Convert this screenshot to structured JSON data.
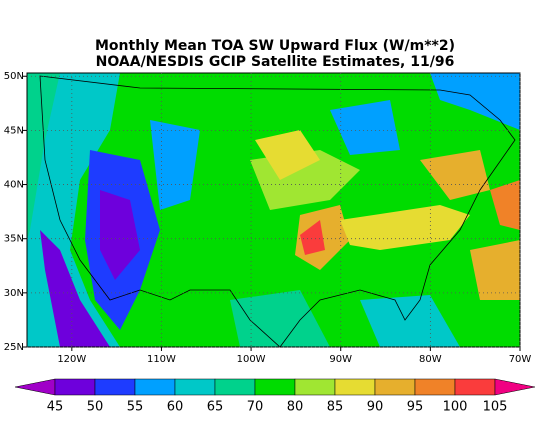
{
  "title": "Monthly Mean TOA SW Upward Flux (W/m**2)",
  "subtitle": "NOAA/NESDIS GCIP Satellite Estimates, 11/96",
  "map": {
    "lonlim": [
      -125,
      -70
    ],
    "latlim": [
      25,
      50.3
    ],
    "lonticks": [
      {
        "value": -120,
        "label": "120W"
      },
      {
        "value": -110,
        "label": "110W"
      },
      {
        "value": -100,
        "label": "100W"
      },
      {
        "value": -90,
        "label": "90W"
      },
      {
        "value": -80,
        "label": "80W"
      },
      {
        "value": -70,
        "label": "70W"
      }
    ],
    "latticks": [
      {
        "value": 25,
        "label": "25N"
      },
      {
        "value": 30,
        "label": "30N"
      },
      {
        "value": 35,
        "label": "35N"
      },
      {
        "value": 40,
        "label": "40N"
      },
      {
        "value": 45,
        "label": "45N"
      },
      {
        "value": 50,
        "label": "50N"
      }
    ],
    "grid": true
  },
  "colorbar": {
    "levels": [
      45,
      50,
      55,
      60,
      65,
      70,
      80,
      85,
      90,
      95,
      100,
      105
    ],
    "colors": [
      "#a000c8",
      "#6e00dc",
      "#1e3cff",
      "#00a0ff",
      "#00c8c8",
      "#00d28c",
      "#00dc00",
      "#a0e632",
      "#e6dc32",
      "#e6af2d",
      "#f08228",
      "#fa3c3c",
      "#f00082"
    ]
  }
}
